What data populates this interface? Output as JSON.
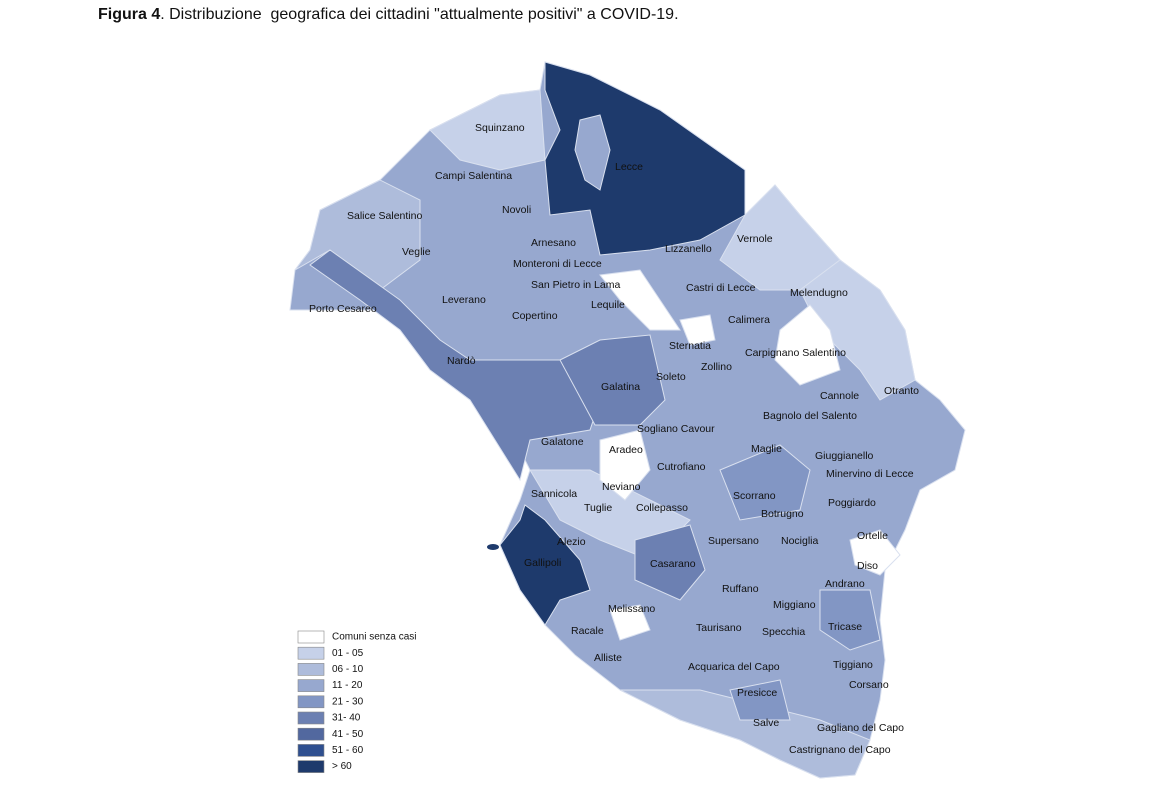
{
  "title": {
    "label": "Figura 4",
    "text": ". Distribuzione  geografica dei cittadini \"attualmente positivi\" a COVID-19."
  },
  "legend": {
    "items": [
      {
        "label": "Comuni senza casi",
        "color": "#ffffff"
      },
      {
        "label": "01 - 05",
        "color": "#c6d1e9"
      },
      {
        "label": "06 - 10",
        "color": "#aebcdb"
      },
      {
        "label": "11 - 20",
        "color": "#97a8cf"
      },
      {
        "label": "21 - 30",
        "color": "#8296c4"
      },
      {
        "label": "31- 40",
        "color": "#6c80b2"
      },
      {
        "label": "41 - 50",
        "color": "#52689f"
      },
      {
        "label": "51 - 60",
        "color": "#2f4f8f"
      },
      {
        "label": " > 60",
        "color": "#1e3a6c"
      }
    ]
  },
  "towns": [
    "Squinzano",
    "Lecce",
    "Campi Salentina",
    "Salice Salentino",
    "Novoli",
    "Veglie",
    "Arnesano",
    "Lizzanello",
    "Vernole",
    "Monteroni di Lecce",
    "San Pietro in Lama",
    "Castri di Lecce",
    "Melendugno",
    "Leverano",
    "Porto Cesareo",
    "Lequile",
    "Copertino",
    "Calimera",
    "Sternatia",
    "Carpignano Salentino",
    "Nardò",
    "Zollino",
    "Soleto",
    "Galatina",
    "Cannole",
    "Otranto",
    "Bagnolo del Salento",
    "Sogliano Cavour",
    "Galatone",
    "Aradeo",
    "Maglie",
    "Giuggianello",
    "Cutrofiano",
    "Minervino di Lecce",
    "Neviano",
    "Sannicola",
    "Scorrano",
    "Poggiardo",
    "Tuglie",
    "Collepasso",
    "Botrugno",
    "Alezio",
    "Supersano",
    "Nociglia",
    "Ortelle",
    "Gallipoli",
    "Casarano",
    "Diso",
    "Andrano",
    "Ruffano",
    "Miggiano",
    "Melissano",
    "Taurisano",
    "Specchia",
    "Tricase",
    "Racale",
    "Alliste",
    "Acquarica del Capo",
    "Tiggiano",
    "Corsano",
    "Presicce",
    "Salve",
    "Gagliano del Capo",
    "Castrignano del Capo"
  ]
}
